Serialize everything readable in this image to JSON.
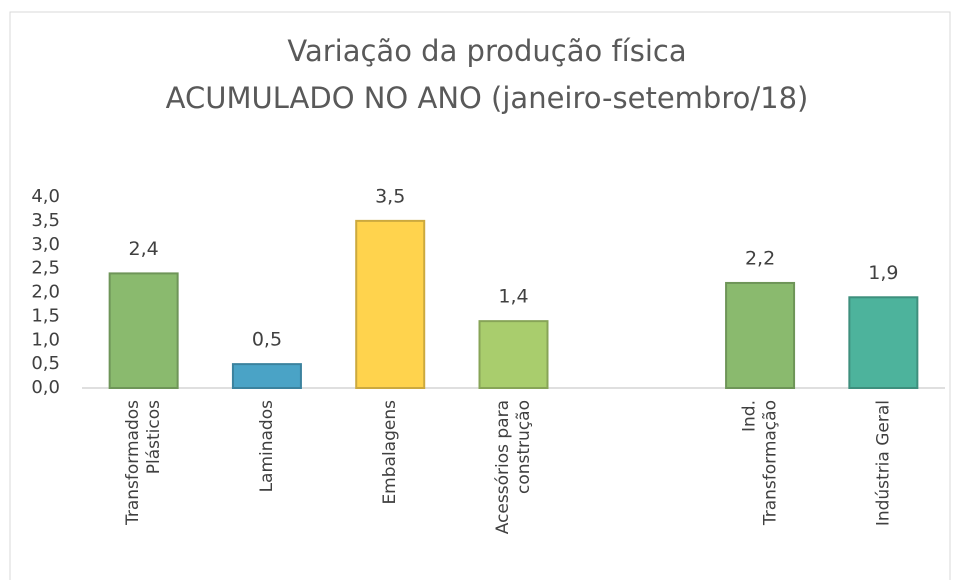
{
  "chart_data": {
    "type": "bar",
    "title": [
      "Variação da produção física",
      "ACUMULADO NO ANO (janeiro-setembro/18)"
    ],
    "categories": [
      [
        "Transformados",
        "Plásticos"
      ],
      [
        "Laminados"
      ],
      [
        "Embalagens"
      ],
      [
        "Acessórios para",
        "construção"
      ],
      null,
      [
        "Ind.",
        "Transformação"
      ],
      [
        "Indústria Geral"
      ]
    ],
    "values": [
      2.4,
      0.5,
      3.5,
      1.4,
      null,
      2.2,
      1.9
    ],
    "value_labels": [
      "2,4",
      "0,5",
      "3,5",
      "1,4",
      null,
      "2,2",
      "1,9"
    ],
    "colors": [
      "#8aba6e",
      "#4aa3c6",
      "#ffd34d",
      "#a9cd6d",
      null,
      "#8aba6e",
      "#4db39c"
    ],
    "ylim": [
      0,
      4
    ],
    "yticks": [
      {
        "value": 0,
        "label": "0,0"
      },
      {
        "value": 0.5,
        "label": "0,5"
      },
      {
        "value": 1,
        "label": "1,0"
      },
      {
        "value": 1.5,
        "label": "1,5"
      },
      {
        "value": 2,
        "label": "2,0"
      },
      {
        "value": 2.5,
        "label": "2,5"
      },
      {
        "value": 3,
        "label": "3,0"
      },
      {
        "value": 3.5,
        "label": "3,5"
      },
      {
        "value": 4,
        "label": "4,0"
      }
    ],
    "grid": false
  }
}
